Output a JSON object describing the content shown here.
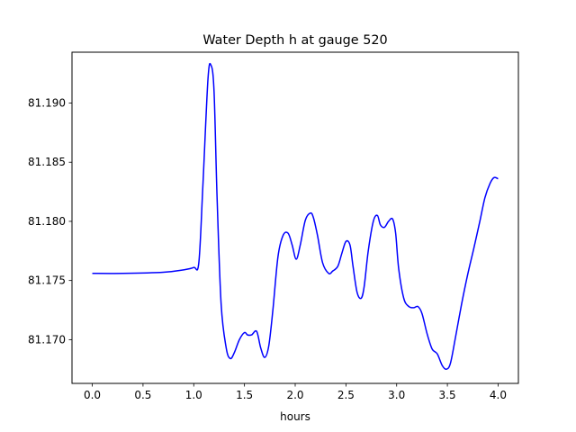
{
  "chart_data": {
    "type": "line",
    "title": "Water Depth h at gauge 520",
    "xlabel": "hours",
    "ylabel": "",
    "xlim": [
      -0.2,
      4.2
    ],
    "ylim": [
      81.1663,
      81.1943
    ],
    "xticks": [
      0.0,
      0.5,
      1.0,
      1.5,
      2.0,
      2.5,
      3.0,
      3.5,
      4.0
    ],
    "xtick_labels": [
      "0.0",
      "0.5",
      "1.0",
      "1.5",
      "2.0",
      "2.5",
      "3.0",
      "3.5",
      "4.0"
    ],
    "yticks": [
      81.17,
      81.175,
      81.18,
      81.185,
      81.19
    ],
    "ytick_labels": [
      "81.170",
      "81.175",
      "81.180",
      "81.185",
      "81.190"
    ],
    "grid": false,
    "series": [
      {
        "color": "#0000ff",
        "x": [
          0.0,
          0.3,
          0.7,
          0.9,
          1.0,
          1.05,
          1.09,
          1.14,
          1.17,
          1.2,
          1.23,
          1.27,
          1.32,
          1.36,
          1.4,
          1.45,
          1.5,
          1.53,
          1.57,
          1.62,
          1.66,
          1.7,
          1.74,
          1.78,
          1.83,
          1.88,
          1.93,
          1.97,
          2.01,
          2.05,
          2.1,
          2.15,
          2.18,
          2.22,
          2.27,
          2.33,
          2.37,
          2.42,
          2.46,
          2.5,
          2.54,
          2.57,
          2.61,
          2.65,
          2.68,
          2.72,
          2.77,
          2.81,
          2.84,
          2.88,
          2.92,
          2.96,
          2.99,
          3.02,
          3.07,
          3.12,
          3.17,
          3.21,
          3.25,
          3.3,
          3.35,
          3.4,
          3.45,
          3.49,
          3.53,
          3.58,
          3.64,
          3.7,
          3.76,
          3.82,
          3.87,
          3.92,
          3.96,
          4.0
        ],
        "values": [
          81.1756,
          81.1756,
          81.1757,
          81.1759,
          81.1761,
          81.1765,
          81.183,
          81.192,
          81.1932,
          81.191,
          81.182,
          81.173,
          81.1693,
          81.1684,
          81.1689,
          81.17,
          81.1706,
          81.1704,
          81.1704,
          81.1707,
          81.1693,
          81.1685,
          81.1695,
          81.1725,
          81.177,
          81.1788,
          81.179,
          81.178,
          81.1768,
          81.178,
          81.1801,
          81.1807,
          81.1803,
          81.1788,
          81.1765,
          81.1756,
          81.1758,
          81.1762,
          81.1773,
          81.1783,
          81.178,
          81.1762,
          81.174,
          81.1735,
          81.1745,
          81.1775,
          81.18,
          81.1805,
          81.1797,
          81.1795,
          81.18,
          81.1802,
          81.179,
          81.176,
          81.1735,
          81.1728,
          81.1727,
          81.1728,
          81.1722,
          81.1705,
          81.1692,
          81.1688,
          81.1678,
          81.1675,
          81.168,
          81.1702,
          81.173,
          81.1755,
          81.1777,
          81.18,
          81.182,
          81.1832,
          81.1837,
          81.1836
        ]
      }
    ]
  }
}
